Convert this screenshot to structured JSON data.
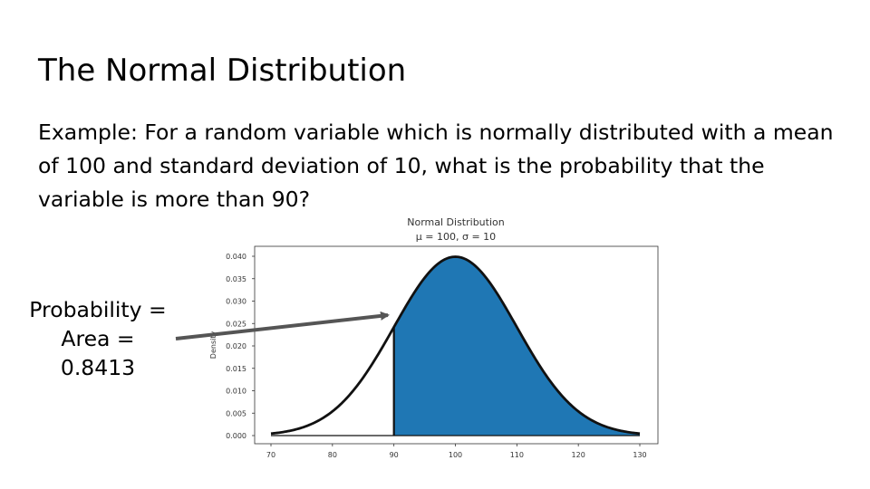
{
  "slide": {
    "title": "The Normal Distribution",
    "body": "Example: For a random variable which is normally distributed with a mean of 100 and standard deviation of 10, what is the probability that the variable is more than 90?"
  },
  "callout": {
    "line1": "Probability =",
    "line2": "Area =",
    "line3": "0.8413"
  },
  "colors": {
    "shade": "#1f77b4",
    "curve": "#111111",
    "arrow": "#555555"
  },
  "chart_data": {
    "type": "area",
    "title": "Normal Distribution",
    "subtitle": "μ = 100, σ = 10",
    "xlabel": "",
    "ylabel": "Density",
    "mean": 100,
    "std": 10,
    "shaded_from": 90,
    "shaded_to": 130,
    "xlim": [
      70,
      130
    ],
    "ylim": [
      0,
      0.04
    ],
    "xticks": [
      70,
      80,
      90,
      100,
      110,
      120,
      130
    ],
    "yticks": [
      "0.000",
      "0.005",
      "0.010",
      "0.015",
      "0.020",
      "0.025",
      "0.030",
      "0.035",
      "0.040"
    ],
    "grid": false,
    "legend": "none"
  }
}
